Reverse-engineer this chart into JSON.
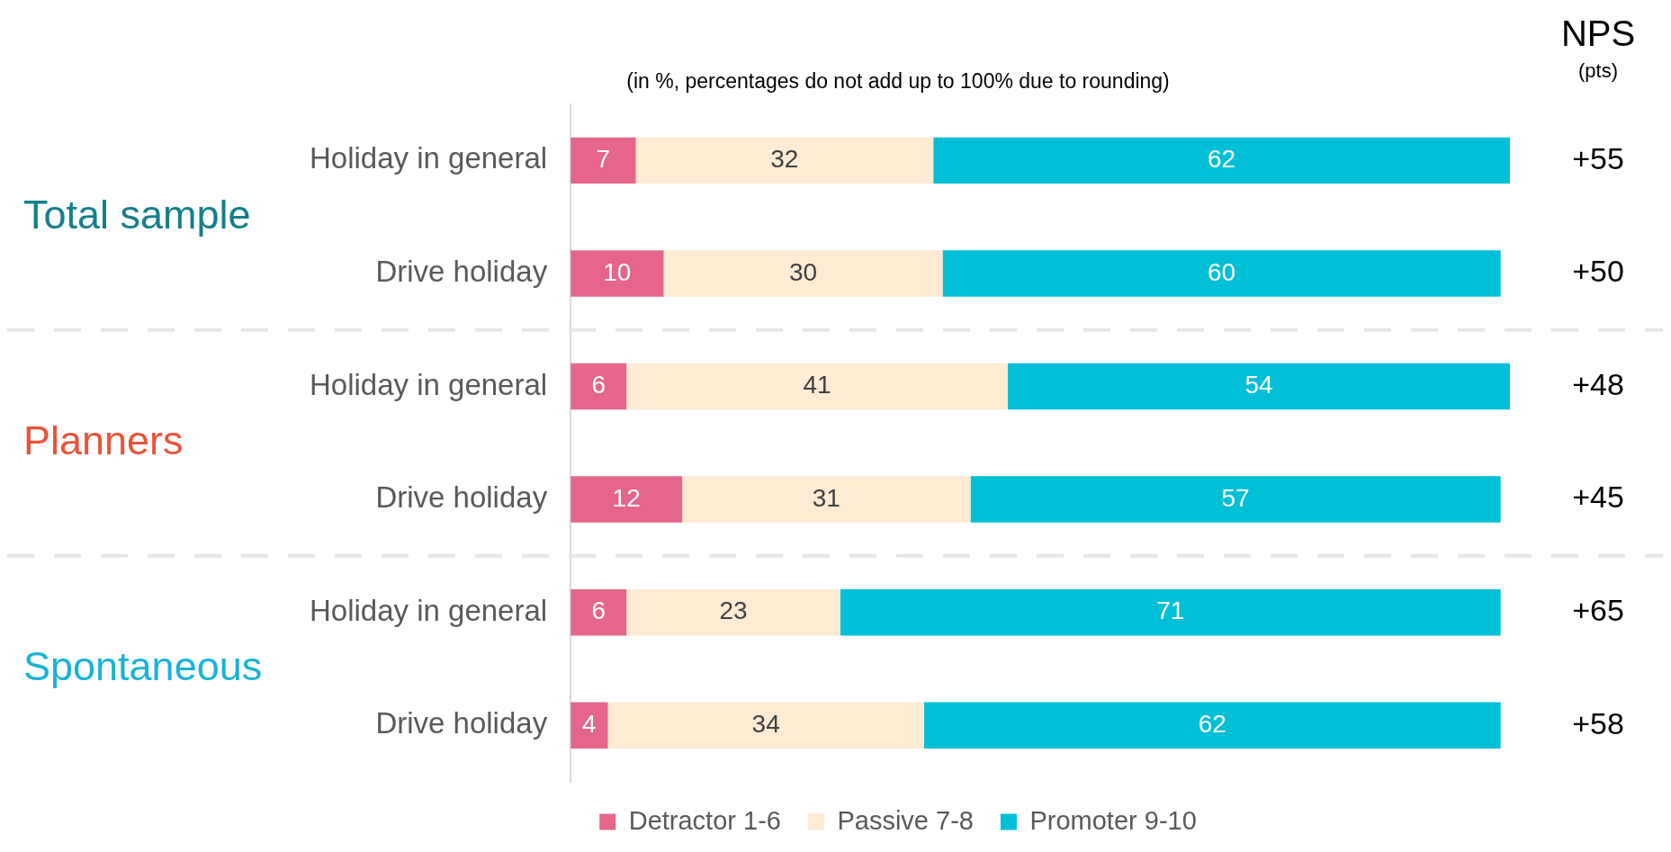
{
  "chart_data": {
    "type": "bar",
    "orientation": "horizontal",
    "stacked": true,
    "subtitle": "(in %, percentages do not add up to 100% due to rounding)",
    "categories": [
      "Holiday in general",
      "Drive holiday",
      "Holiday in general",
      "Drive holiday",
      "Holiday in general",
      "Drive holiday"
    ],
    "series": [
      {
        "name": "Detractor 1-6",
        "color": "#e5668a",
        "values": [
          7,
          10,
          6,
          12,
          6,
          4
        ]
      },
      {
        "name": "Passive 7-8",
        "color": "#fdebd3",
        "values": [
          32,
          30,
          41,
          31,
          23,
          34
        ]
      },
      {
        "name": "Promoter 9-10",
        "color": "#00bfd6",
        "values": [
          62,
          60,
          54,
          57,
          71,
          62
        ]
      }
    ],
    "xlim": [
      0,
      101
    ],
    "tick_labels": "y",
    "grid": false,
    "legend": "bottom",
    "data_labels": true,
    "annotations": [
      "NPS",
      "(pts)",
      "Total sample",
      "Planners",
      "Spontaneous",
      "+55",
      "+50",
      "+48",
      "+45",
      "+65",
      "+58"
    ]
  }
}
